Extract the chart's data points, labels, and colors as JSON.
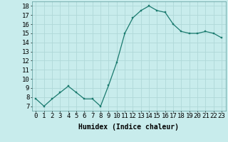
{
  "x": [
    0,
    1,
    2,
    3,
    4,
    5,
    6,
    7,
    8,
    9,
    10,
    11,
    12,
    13,
    14,
    15,
    16,
    17,
    18,
    19,
    20,
    21,
    22,
    23
  ],
  "y": [
    7.8,
    7.0,
    7.8,
    8.5,
    9.2,
    8.5,
    7.8,
    7.8,
    7.0,
    9.3,
    11.8,
    15.0,
    16.7,
    17.5,
    18.0,
    17.5,
    17.3,
    16.0,
    15.2,
    15.0,
    15.0,
    15.2,
    15.0,
    14.5
  ],
  "line_color": "#1a7a6e",
  "marker_color": "#1a7a6e",
  "bg_color": "#c8ecec",
  "grid_color": "#b0d8d8",
  "xlabel": "Humidex (Indice chaleur)",
  "ylim": [
    6.5,
    18.5
  ],
  "xlim": [
    -0.5,
    23.5
  ],
  "yticks": [
    7,
    8,
    9,
    10,
    11,
    12,
    13,
    14,
    15,
    16,
    17,
    18
  ],
  "xtick_labels": [
    "0",
    "1",
    "2",
    "3",
    "4",
    "5",
    "6",
    "7",
    "8",
    "9",
    "10",
    "11",
    "12",
    "13",
    "14",
    "15",
    "16",
    "17",
    "18",
    "19",
    "20",
    "21",
    "22",
    "23"
  ],
  "axis_fontsize": 7,
  "tick_fontsize": 6.5
}
